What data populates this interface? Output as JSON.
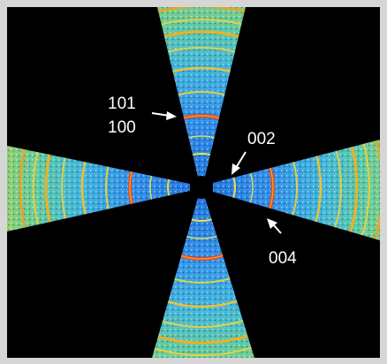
{
  "annotations": {
    "label_101": "101",
    "label_100": "100",
    "label_002": "002",
    "label_004": "004"
  }
}
